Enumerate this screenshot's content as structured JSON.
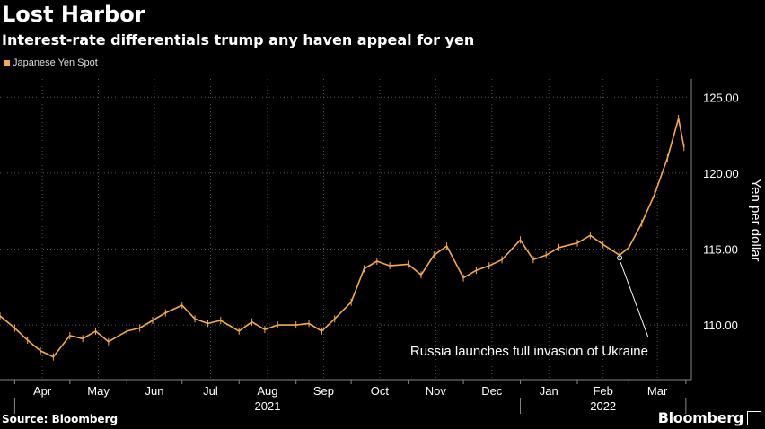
{
  "header": {
    "title": "Lost Harbor",
    "subtitle": "Interest-rate differentials trump any haven appeal for yen"
  },
  "legend": {
    "label": "Japanese Yen Spot",
    "color": "#f7a94a"
  },
  "footer": {
    "source": "Source: Bloomberg",
    "brand": "Bloomberg"
  },
  "chart_data": {
    "type": "line",
    "title": "Lost Harbor",
    "subtitle": "Interest-rate differentials trump any haven appeal for yen",
    "ylabel": "Yen per dollar",
    "ylim": [
      106.4,
      126.2
    ],
    "yticks": [
      110,
      115,
      120,
      125
    ],
    "ytick_labels": [
      "110.00",
      "115.00",
      "120.00",
      "125.00"
    ],
    "grid": true,
    "legend_position": "top-left",
    "months": [
      "Apr",
      "May",
      "Jun",
      "Jul",
      "Aug",
      "Sep",
      "Oct",
      "Nov",
      "Dec",
      "Jan",
      "Feb",
      "Mar"
    ],
    "years": [
      {
        "label": "2021",
        "month_span": [
          "Apr",
          "Dec"
        ]
      },
      {
        "label": "2022",
        "month_span": [
          "Jan",
          "Mar"
        ]
      }
    ],
    "x": [
      "2021-03-24",
      "2021-04-01",
      "2021-04-08",
      "2021-04-15",
      "2021-04-22",
      "2021-05-01",
      "2021-05-08",
      "2021-05-15",
      "2021-05-22",
      "2021-06-01",
      "2021-06-08",
      "2021-06-15",
      "2021-06-22",
      "2021-07-01",
      "2021-07-08",
      "2021-07-15",
      "2021-07-22",
      "2021-08-01",
      "2021-08-08",
      "2021-08-15",
      "2021-08-22",
      "2021-09-01",
      "2021-09-08",
      "2021-09-15",
      "2021-09-22",
      "2021-10-01",
      "2021-10-08",
      "2021-10-15",
      "2021-10-22",
      "2021-11-01",
      "2021-11-08",
      "2021-11-15",
      "2021-11-22",
      "2021-12-01",
      "2021-12-08",
      "2021-12-15",
      "2021-12-22",
      "2022-01-01",
      "2022-01-08",
      "2022-01-15",
      "2022-01-22",
      "2022-02-01",
      "2022-02-08",
      "2022-02-15",
      "2022-02-24",
      "2022-03-01",
      "2022-03-08",
      "2022-03-15",
      "2022-03-22",
      "2022-03-28",
      "2022-03-31"
    ],
    "series": [
      {
        "name": "Japanese Yen Spot",
        "color": "#f7a94a",
        "values": [
          110.6,
          109.8,
          109.0,
          108.3,
          107.9,
          109.3,
          109.1,
          109.6,
          108.9,
          109.6,
          109.8,
          110.3,
          110.8,
          111.3,
          110.4,
          110.1,
          110.3,
          109.6,
          110.2,
          109.7,
          110.0,
          110.0,
          110.1,
          109.6,
          110.4,
          111.5,
          113.7,
          114.2,
          113.9,
          114.0,
          113.3,
          114.6,
          115.2,
          113.1,
          113.6,
          113.9,
          114.3,
          115.6,
          114.3,
          114.6,
          115.1,
          115.4,
          115.9,
          115.3,
          114.6,
          115.1,
          116.7,
          118.6,
          121.0,
          123.6,
          121.7
        ]
      }
    ],
    "annotations": [
      {
        "text": "Russia launches full invasion of Ukraine",
        "x": "2022-02-24",
        "y": 114.6
      }
    ]
  }
}
